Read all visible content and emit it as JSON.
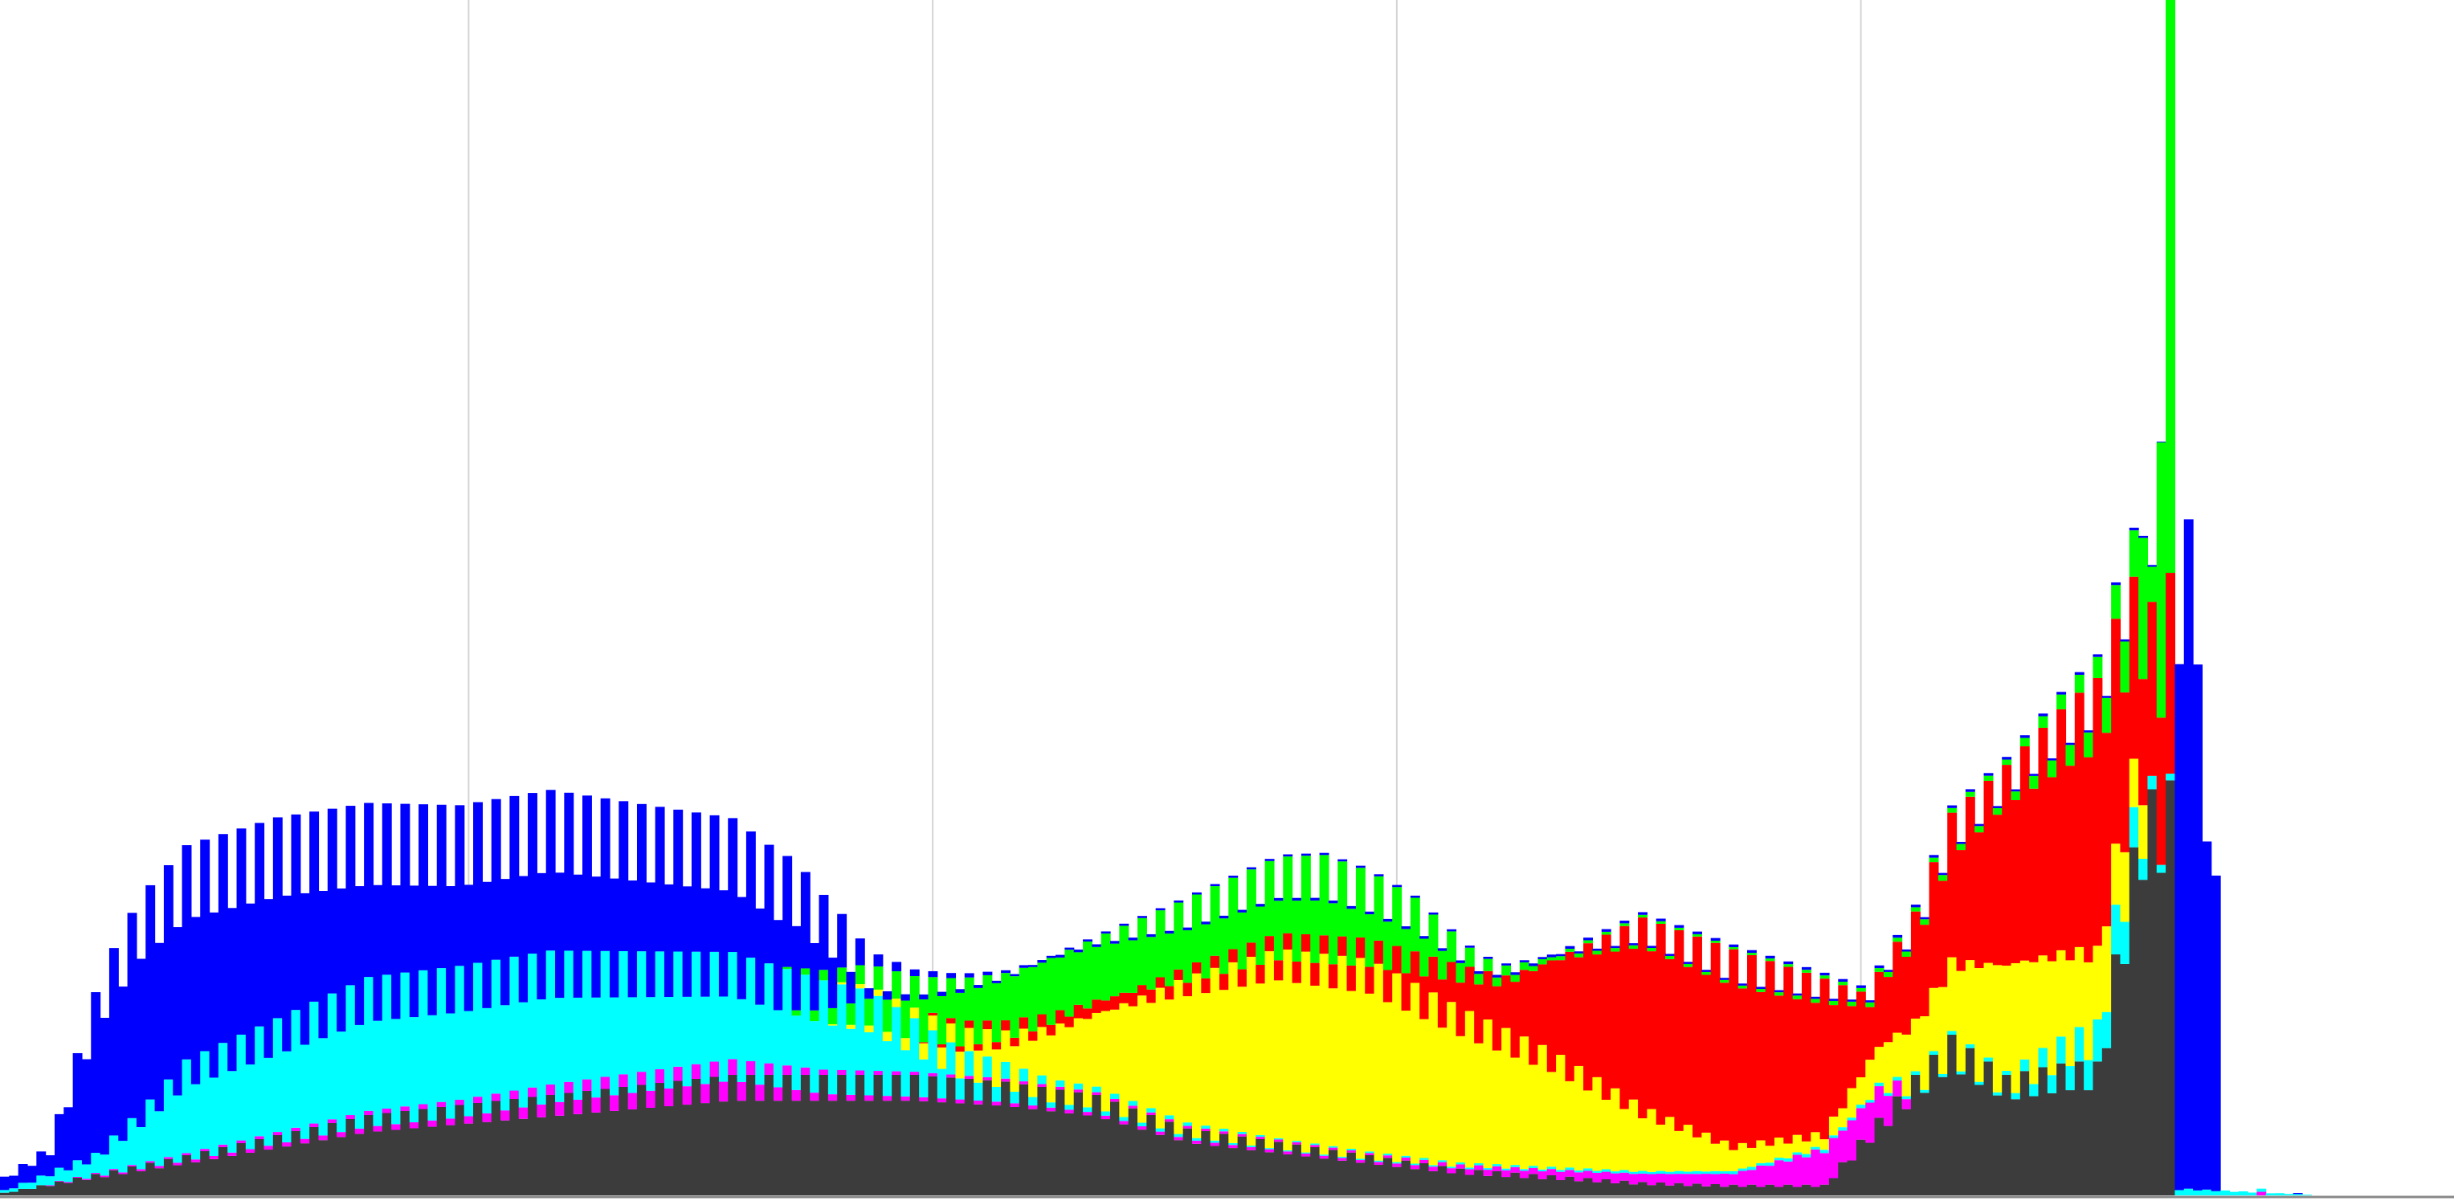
{
  "chart_data": {
    "type": "bar",
    "stacked": true,
    "grid": "vertical",
    "bin_count": 256,
    "vertical_gridlines_at_bins": [
      51,
      102,
      153,
      204
    ],
    "ylim": [
      0,
      1
    ],
    "colors": {
      "dark": "#3c3c3c",
      "magenta": "#ff00ff",
      "cyan": "#00ffff",
      "yellow": "#ffff00",
      "red": "#ff0000",
      "green": "#00ff00",
      "blue": "#0000ff",
      "grid": "#d4d4d4",
      "baseline": "#888888"
    },
    "series": [
      {
        "color_key": "dark",
        "keys": [
          [
            0,
            0.002
          ],
          [
            20,
            0.03
          ],
          [
            40,
            0.06
          ],
          [
            60,
            0.075
          ],
          [
            80,
            0.09
          ],
          [
            100,
            0.09
          ],
          [
            110,
            0.085
          ],
          [
            120,
            0.075
          ],
          [
            130,
            0.05
          ],
          [
            140,
            0.04
          ],
          [
            150,
            0.03
          ],
          [
            160,
            0.02
          ],
          [
            170,
            0.015
          ],
          [
            180,
            0.01
          ],
          [
            190,
            0.008
          ],
          [
            200,
            0.008
          ],
          [
            205,
            0.05
          ],
          [
            210,
            0.09
          ],
          [
            214,
            0.12
          ],
          [
            220,
            0.09
          ],
          [
            227,
            0.1
          ],
          [
            230,
            0.1
          ],
          [
            235,
            0.3
          ],
          [
            238,
            0.31
          ],
          [
            239,
            0.0
          ],
          [
            255,
            0.0
          ]
        ]
      },
      {
        "color_key": "magenta",
        "keys": [
          [
            0,
            0.0
          ],
          [
            50,
            0.005
          ],
          [
            60,
            0.01
          ],
          [
            80,
            0.015
          ],
          [
            90,
            0.005
          ],
          [
            100,
            0.003
          ],
          [
            150,
            0.002
          ],
          [
            190,
            0.01
          ],
          [
            200,
            0.03
          ],
          [
            206,
            0.03
          ],
          [
            210,
            0.0
          ],
          [
            255,
            0.0
          ]
        ]
      },
      {
        "color_key": "cyan",
        "keys": [
          [
            0,
            0.002
          ],
          [
            10,
            0.015
          ],
          [
            15,
            0.04
          ],
          [
            20,
            0.07
          ],
          [
            40,
            0.1
          ],
          [
            60,
            0.1
          ],
          [
            80,
            0.08
          ],
          [
            95,
            0.06
          ],
          [
            105,
            0.02
          ],
          [
            115,
            0.005
          ],
          [
            140,
            0.001
          ],
          [
            220,
            0.003
          ],
          [
            233,
            0.04
          ],
          [
            236,
            0.01
          ],
          [
            238,
            0.005
          ],
          [
            240,
            0.005
          ],
          [
            255,
            0.0
          ]
        ]
      },
      {
        "color_key": "yellow",
        "keys": [
          [
            0,
            0.0
          ],
          [
            90,
            0.0
          ],
          [
            100,
            0.01
          ],
          [
            110,
            0.03
          ],
          [
            120,
            0.07
          ],
          [
            130,
            0.12
          ],
          [
            140,
            0.15
          ],
          [
            150,
            0.15
          ],
          [
            160,
            0.12
          ],
          [
            170,
            0.09
          ],
          [
            180,
            0.05
          ],
          [
            190,
            0.02
          ],
          [
            200,
            0.01
          ],
          [
            210,
            0.05
          ],
          [
            220,
            0.1
          ],
          [
            230,
            0.07
          ],
          [
            235,
            0.04
          ],
          [
            236,
            0.0
          ],
          [
            255,
            0.0
          ]
        ]
      },
      {
        "color_key": "red",
        "keys": [
          [
            0,
            0.0
          ],
          [
            100,
            0.0
          ],
          [
            105,
            0.005
          ],
          [
            115,
            0.01
          ],
          [
            130,
            0.01
          ],
          [
            150,
            0.02
          ],
          [
            165,
            0.05
          ],
          [
            180,
            0.15
          ],
          [
            190,
            0.15
          ],
          [
            200,
            0.12
          ],
          [
            205,
            0.05
          ],
          [
            210,
            0.08
          ],
          [
            220,
            0.15
          ],
          [
            230,
            0.2
          ],
          [
            235,
            0.12
          ],
          [
            238,
            0.15
          ],
          [
            239,
            0.0
          ],
          [
            255,
            0.0
          ]
        ]
      },
      {
        "color_key": "green",
        "keys": [
          [
            0,
            0.0
          ],
          [
            85,
            0.0
          ],
          [
            95,
            0.02
          ],
          [
            105,
            0.04
          ],
          [
            115,
            0.05
          ],
          [
            130,
            0.05
          ],
          [
            145,
            0.06
          ],
          [
            155,
            0.04
          ],
          [
            162,
            0.01
          ],
          [
            170,
            0.003
          ],
          [
            190,
            0.002
          ],
          [
            220,
            0.005
          ],
          [
            230,
            0.02
          ],
          [
            235,
            0.05
          ],
          [
            238,
            0.0
          ],
          [
            255,
            0.0
          ]
        ]
      },
      {
        "color_key": "blue",
        "keys": [
          [
            0,
            0.01
          ],
          [
            5,
            0.02
          ],
          [
            8,
            0.08
          ],
          [
            10,
            0.12
          ],
          [
            12,
            0.14
          ],
          [
            15,
            0.16
          ],
          [
            20,
            0.16
          ],
          [
            30,
            0.15
          ],
          [
            40,
            0.13
          ],
          [
            50,
            0.12
          ],
          [
            60,
            0.12
          ],
          [
            70,
            0.11
          ],
          [
            80,
            0.1
          ],
          [
            87,
            0.08
          ],
          [
            92,
            0.04
          ],
          [
            95,
            0.01
          ],
          [
            100,
            0.005
          ],
          [
            110,
            0.002
          ],
          [
            235,
            0.002
          ],
          [
            238,
            0.0
          ],
          [
            239,
            0.5
          ],
          [
            241,
            0.5
          ],
          [
            242,
            0.26
          ],
          [
            243,
            0.3
          ],
          [
            244,
            0.0
          ],
          [
            255,
            0.0
          ]
        ]
      }
    ],
    "spikes": [
      {
        "bin": 235,
        "color_key": "green",
        "value": 0.55
      },
      {
        "bin": 236,
        "color_key": "red",
        "value": 0.08
      },
      {
        "bin": 237,
        "color_key": "green",
        "value": 0.63
      },
      {
        "bin": 238,
        "color_key": "green",
        "value": 1.0
      },
      {
        "bin": 243,
        "color_key": "blue",
        "value": 0.18
      },
      {
        "bin": 248,
        "color_key": "magenta",
        "value": 0.003
      },
      {
        "bin": 252,
        "color_key": "blue",
        "value": 0.002
      }
    ]
  }
}
